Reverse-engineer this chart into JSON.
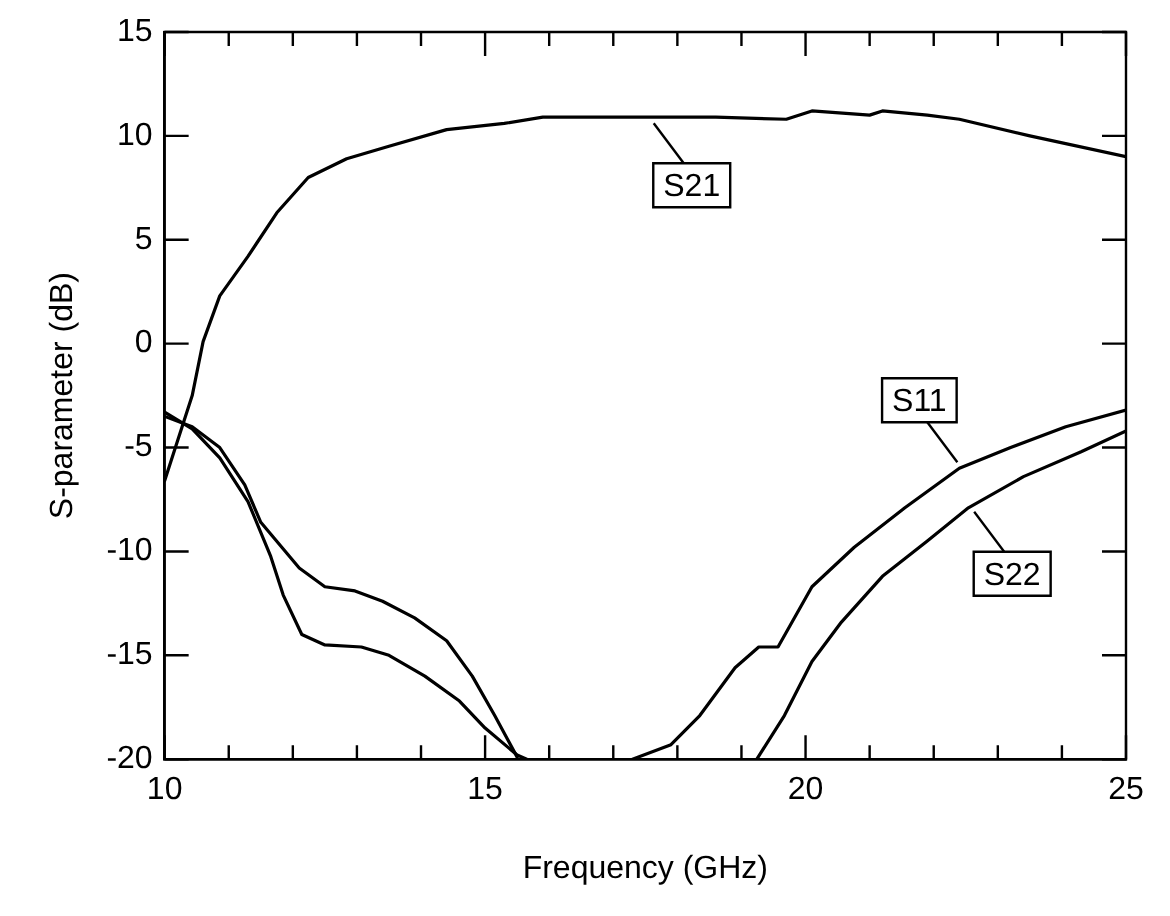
{
  "chart_data": {
    "type": "line",
    "xlabel": "Frequency (GHz)",
    "ylabel": "S-parameter (dB)",
    "xlim": [
      10,
      25
    ],
    "xticks": [
      10,
      {
        "value": 11,
        "label": null
      },
      {
        "value": 12,
        "label": null
      },
      {
        "value": 13,
        "label": null
      },
      {
        "value": 14,
        "label": null
      },
      15,
      {
        "value": 16,
        "label": null
      },
      {
        "value": 17,
        "label": null
      },
      {
        "value": 18,
        "label": null
      },
      {
        "value": 19,
        "label": null
      },
      20,
      {
        "value": 21,
        "label": null
      },
      {
        "value": 22,
        "label": null
      },
      {
        "value": 23,
        "label": null
      },
      {
        "value": 24,
        "label": null
      },
      25
    ],
    "ylim": [
      -20,
      15
    ],
    "yticks": [
      -20,
      -15,
      -10,
      -5,
      0,
      5,
      10,
      15
    ],
    "grid": false,
    "legend": false,
    "marker": "none",
    "line_style": "solid",
    "series": [
      {
        "color": "#000000",
        "x": [
          10,
          10.43,
          10.6,
          10.86,
          11.3,
          11.75,
          12.24,
          12.84,
          13.5,
          14.4,
          15.3,
          15.9,
          16.9,
          18.6,
          19.7,
          20.1,
          21.0,
          21.2,
          21.9,
          22.4,
          23.5,
          25
        ],
        "values": [
          -6.6,
          -2.5,
          0.1,
          2.3,
          4.2,
          6.3,
          8.0,
          8.9,
          9.5,
          10.3,
          10.6,
          10.9,
          10.9,
          10.9,
          10.8,
          11.2,
          11.0,
          11.2,
          11.0,
          10.8,
          10.0,
          9.0
        ]
      },
      {
        "color": "#000000",
        "x": [
          10,
          10.43,
          10.86,
          11.25,
          11.5,
          12.1,
          12.5,
          12.97,
          13.4,
          13.9,
          14.4,
          14.8,
          15.15,
          15.5,
          16.5,
          17.3,
          17.9,
          18.35,
          18.9,
          19.27,
          19.57,
          20.1,
          20.76,
          21.55,
          22.4,
          23.2,
          24.06,
          25
        ],
        "values": [
          -3.5,
          -4.0,
          -5.0,
          -6.8,
          -8.6,
          -10.8,
          -11.7,
          -11.9,
          -12.4,
          -13.2,
          -14.3,
          -16.0,
          -17.9,
          -19.9,
          null,
          -20,
          -19.3,
          -17.9,
          -15.6,
          -14.6,
          -14.6,
          -11.7,
          -9.8,
          -7.9,
          -6.0,
          -5.0,
          -4.0,
          -3.2
        ]
      },
      {
        "color": "#000000",
        "x": [
          10,
          10.43,
          10.86,
          11.3,
          11.65,
          11.85,
          12.14,
          12.5,
          13.07,
          13.5,
          14.06,
          14.6,
          15.0,
          15.5,
          15.65,
          17.5,
          19.24,
          19.67,
          20.1,
          20.56,
          21.2,
          21.9,
          22.54,
          23.4,
          24.3,
          25
        ],
        "values": [
          -3.3,
          -4.1,
          -5.5,
          -7.6,
          -10.2,
          -12.1,
          -14.0,
          -14.5,
          -14.6,
          -15.0,
          -16.0,
          -17.2,
          -18.5,
          -19.8,
          -20,
          null,
          -20,
          -17.9,
          -15.3,
          -13.4,
          -11.2,
          -9.5,
          -7.9,
          -6.4,
          -5.2,
          -4.2
        ]
      }
    ],
    "annotations": [
      {
        "text": "S21",
        "x": 17.6,
        "y": 10.9
      },
      {
        "text": "S11",
        "x": 22.4,
        "y": -6.0
      },
      {
        "text": "S22",
        "x": 22.6,
        "y": -7.8
      }
    ]
  }
}
